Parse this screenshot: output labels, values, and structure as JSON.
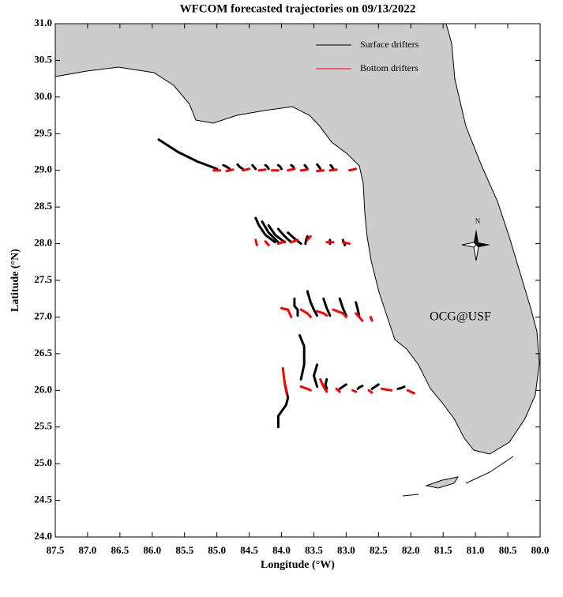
{
  "chart_data": {
    "type": "trajectory",
    "title": "WFCOM forecasted trajectories on 09/13/2022",
    "x_label": "Longitude (°W)",
    "y_label": "Latitude (°N)",
    "annotation": "OCG@USF",
    "annotation_color": "#ff0000",
    "compass_label": "N",
    "legend": "upper right",
    "xlim": [
      87.5,
      80.0
    ],
    "ylim": [
      24.0,
      31.0
    ],
    "xticks": [
      87.5,
      {
        "value": 87,
        "label": "87.0"
      },
      86.5,
      {
        "value": 86,
        "label": "86.0"
      },
      85.5,
      {
        "value": 85,
        "label": "85.0"
      },
      84.5,
      {
        "value": 84,
        "label": "84.0"
      },
      83.5,
      {
        "value": 83,
        "label": "83.0"
      },
      82.5,
      {
        "value": 82,
        "label": "82.0"
      },
      81.5,
      {
        "value": 81,
        "label": "81.0"
      },
      80.5,
      {
        "value": 80,
        "label": "80.0"
      }
    ],
    "yticks": [
      {
        "value": 24,
        "label": "24.0"
      },
      24.5,
      {
        "value": 25,
        "label": "25.0"
      },
      25.5,
      {
        "value": 26,
        "label": "26.0"
      },
      26.5,
      {
        "value": 27,
        "label": "27.0"
      },
      27.5,
      {
        "value": 28,
        "label": "28.0"
      },
      28.5,
      {
        "value": 29,
        "label": "29.0"
      },
      29.5,
      {
        "value": 30,
        "label": "30.0"
      },
      30.5,
      {
        "value": 31,
        "label": "31.0"
      }
    ],
    "series": [
      {
        "name": "Surface drifters",
        "color": "#000000",
        "tracks": [
          {
            "x": [
              85.9,
              85.6,
              85.3,
              85.0
            ],
            "y": [
              29.42,
              29.25,
              29.12,
              29.02
            ]
          },
          {
            "x": [
              84.8,
              84.85,
              84.9
            ],
            "y": [
              29.02,
              29.05,
              29.07
            ]
          },
          {
            "x": [
              84.6,
              84.65,
              84.68
            ],
            "y": [
              29.02,
              29.05,
              29.08
            ]
          },
          {
            "x": [
              84.4,
              84.43,
              84.45
            ],
            "y": [
              29.02,
              29.05,
              29.07
            ]
          },
          {
            "x": [
              84.2,
              84.22,
              84.25
            ],
            "y": [
              29.02,
              29.05,
              29.07
            ]
          },
          {
            "x": [
              84.0,
              84.02,
              84.05
            ],
            "y": [
              29.02,
              29.05,
              29.07
            ]
          },
          {
            "x": [
              83.8,
              83.82,
              83.85
            ],
            "y": [
              29.02,
              29.05,
              29.07
            ]
          },
          {
            "x": [
              83.6,
              83.62,
              83.64
            ],
            "y": [
              29.02,
              29.05,
              29.07
            ]
          },
          {
            "x": [
              83.4,
              83.42,
              83.45
            ],
            "y": [
              29.02,
              29.05,
              29.08
            ]
          },
          {
            "x": [
              83.2,
              83.22,
              83.24
            ],
            "y": [
              29.02,
              29.05,
              29.07
            ]
          },
          {
            "x": [
              84.4,
              84.35,
              84.25,
              84.1
            ],
            "y": [
              28.35,
              28.25,
              28.12,
              28.02
            ]
          },
          {
            "x": [
              84.3,
              84.2,
              84.05
            ],
            "y": [
              28.3,
              28.15,
              28.02
            ]
          },
          {
            "x": [
              84.2,
              84.1,
              83.95
            ],
            "y": [
              28.25,
              28.12,
              28.02
            ]
          },
          {
            "x": [
              84.05,
              83.95,
              83.85
            ],
            "y": [
              28.2,
              28.1,
              28.02
            ]
          },
          {
            "x": [
              83.9,
              83.8,
              83.7
            ],
            "y": [
              28.15,
              28.07,
              28.0
            ]
          },
          {
            "x": [
              83.6,
              83.62,
              83.63
            ],
            "y": [
              28.1,
              28.05,
              28.0
            ]
          },
          {
            "x": [
              83.25,
              83.25
            ],
            "y": [
              28.05,
              28.0
            ]
          },
          {
            "x": [
              83.05,
              83.02
            ],
            "y": [
              28.05,
              27.98
            ]
          },
          {
            "x": [
              83.8,
              83.8,
              83.75,
              83.75
            ],
            "y": [
              27.25,
              27.15,
              27.1,
              27.02
            ]
          },
          {
            "x": [
              83.6,
              83.55,
              83.5,
              83.45
            ],
            "y": [
              27.35,
              27.2,
              27.1,
              27.02
            ]
          },
          {
            "x": [
              83.35,
              83.3,
              83.25
            ],
            "y": [
              27.25,
              27.12,
              27.02
            ]
          },
          {
            "x": [
              83.1,
              83.05,
              83.0
            ],
            "y": [
              27.25,
              27.12,
              27.02
            ]
          },
          {
            "x": [
              82.85,
              82.82,
              82.8
            ],
            "y": [
              27.2,
              27.1,
              27.02
            ]
          },
          {
            "x": [
              83.72,
              83.65,
              83.65,
              83.7
            ],
            "y": [
              26.75,
              26.6,
              26.35,
              26.15
            ]
          },
          {
            "x": [
              83.95,
              83.9,
              83.93,
              84.05,
              84.05
            ],
            "y": [
              26.1,
              25.9,
              25.8,
              25.65,
              25.5
            ]
          },
          {
            "x": [
              83.45,
              83.5,
              83.45
            ],
            "y": [
              26.35,
              26.2,
              26.05
            ]
          },
          {
            "x": [
              83.3,
              83.32,
              83.3
            ],
            "y": [
              26.15,
              26.08,
              26.02
            ]
          },
          {
            "x": [
              83.0,
              83.05,
              83.1
            ],
            "y": [
              26.08,
              26.05,
              26.02
            ]
          },
          {
            "x": [
              82.75,
              82.8,
              82.82
            ],
            "y": [
              26.06,
              26.04,
              26.02
            ]
          },
          {
            "x": [
              82.5,
              82.55,
              82.6
            ],
            "y": [
              26.08,
              26.05,
              26.02
            ]
          },
          {
            "x": [
              82.1,
              82.15,
              82.2
            ],
            "y": [
              26.05,
              26.03,
              26.02
            ]
          }
        ]
      },
      {
        "name": "Bottom drifters",
        "color": "#ff0000",
        "tracks": [
          {
            "x": [
              85.05,
              84.95
            ],
            "y": [
              29.0,
              29.0
            ]
          },
          {
            "x": [
              84.85,
              84.75
            ],
            "y": [
              28.99,
              29.01
            ]
          },
          {
            "x": [
              84.6,
              84.5
            ],
            "y": [
              29.0,
              29.02
            ]
          },
          {
            "x": [
              84.35,
              84.25
            ],
            "y": [
              29.0,
              29.01
            ]
          },
          {
            "x": [
              84.15,
              84.05
            ],
            "y": [
              29.0,
              29.0
            ]
          },
          {
            "x": [
              83.9,
              83.8
            ],
            "y": [
              29.0,
              29.02
            ]
          },
          {
            "x": [
              83.7,
              83.6
            ],
            "y": [
              29.0,
              29.01
            ]
          },
          {
            "x": [
              83.45,
              83.35
            ],
            "y": [
              28.99,
              29.0
            ]
          },
          {
            "x": [
              83.25,
              83.15
            ],
            "y": [
              29.0,
              29.01
            ]
          },
          {
            "x": [
              82.95,
              82.85
            ],
            "y": [
              29.0,
              29.02
            ]
          },
          {
            "x": [
              84.4,
              84.38
            ],
            "y": [
              28.05,
              27.98
            ]
          },
          {
            "x": [
              84.25,
              84.2
            ],
            "y": [
              28.03,
              27.98
            ]
          },
          {
            "x": [
              84.05,
              83.95
            ],
            "y": [
              28.0,
              28.03
            ]
          },
          {
            "x": [
              83.85,
              83.75
            ],
            "y": [
              28.02,
              28.05
            ]
          },
          {
            "x": [
              83.6,
              83.55
            ],
            "y": [
              28.05,
              28.1
            ]
          },
          {
            "x": [
              83.3,
              83.2
            ],
            "y": [
              28.02,
              28.02
            ]
          },
          {
            "x": [
              83.05,
              82.95
            ],
            "y": [
              28.02,
              28.0
            ]
          },
          {
            "x": [
              84.0,
              83.9,
              83.85
            ],
            "y": [
              27.12,
              27.1,
              27.0
            ]
          },
          {
            "x": [
              83.7,
              83.6,
              83.55
            ],
            "y": [
              27.1,
              27.05,
              27.0
            ]
          },
          {
            "x": [
              83.45,
              83.35,
              83.3
            ],
            "y": [
              27.08,
              27.05,
              27.02
            ]
          },
          {
            "x": [
              83.2,
              83.05,
              83.0
            ],
            "y": [
              27.1,
              27.05,
              27.0
            ]
          },
          {
            "x": [
              82.85,
              82.8,
              82.75
            ],
            "y": [
              27.05,
              27.0,
              26.95
            ]
          },
          {
            "x": [
              82.62,
              82.6
            ],
            "y": [
              27.0,
              26.95
            ]
          },
          {
            "x": [
              83.98,
              83.95,
              83.92
            ],
            "y": [
              26.3,
              26.1,
              25.95
            ]
          },
          {
            "x": [
              83.7,
              83.6,
              83.55
            ],
            "y": [
              26.05,
              26.02,
              26.0
            ]
          },
          {
            "x": [
              83.4,
              83.35,
              83.3
            ],
            "y": [
              26.15,
              26.05,
              25.98
            ]
          },
          {
            "x": [
              83.15,
              83.1
            ],
            "y": [
              26.02,
              25.98
            ]
          },
          {
            "x": [
              82.9,
              82.85
            ],
            "y": [
              26.0,
              25.98
            ]
          },
          {
            "x": [
              82.65,
              82.6
            ],
            "y": [
              26.0,
              25.97
            ]
          },
          {
            "x": [
              82.45,
              82.3
            ],
            "y": [
              26.02,
              26.0
            ]
          },
          {
            "x": [
              82.05,
              82.0,
              81.95
            ],
            "y": [
              26.0,
              25.98,
              25.96
            ]
          }
        ]
      }
    ]
  }
}
